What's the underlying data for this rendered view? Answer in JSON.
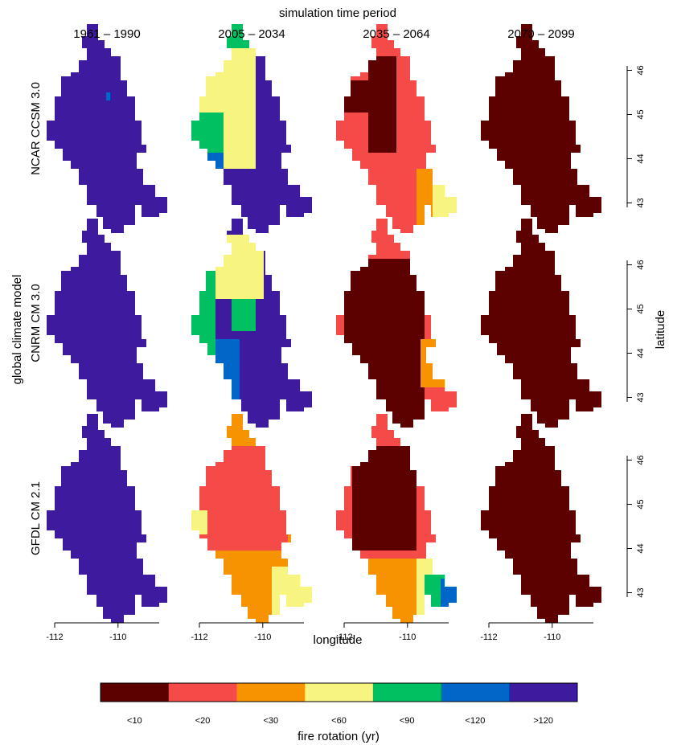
{
  "title": "simulation time period",
  "periods": [
    "1961 – 1990",
    "2005 – 2034",
    "2035 – 2064",
    "2070 – 2099"
  ],
  "models": [
    "NCAR CCSM 3.0",
    "CNRM CM 3.0",
    "GFDL CM 2.1"
  ],
  "model_axis_title": "global climate model",
  "x_axis": {
    "label": "longitude",
    "xlim": [
      -112,
      -108.7
    ],
    "xticks": [
      -112,
      -110
    ]
  },
  "y_axis": {
    "label": "latitude",
    "ylim": [
      42.9,
      46.1
    ],
    "yticks": [
      43,
      44,
      45,
      46
    ]
  },
  "legend": {
    "title": "fire rotation (yr)",
    "classes": [
      {
        "label": "<10",
        "color": "#5c0000"
      },
      {
        "label": "<20",
        "color": "#f44a48"
      },
      {
        "label": "<30",
        "color": "#f79200"
      },
      {
        "label": "<60",
        "color": "#f7f57f"
      },
      {
        "label": "<90",
        "color": "#00c062"
      },
      {
        "label": "<120",
        "color": "#0066c8"
      },
      {
        "label": ">120",
        "color": "#3d1a9e"
      }
    ]
  }
}
